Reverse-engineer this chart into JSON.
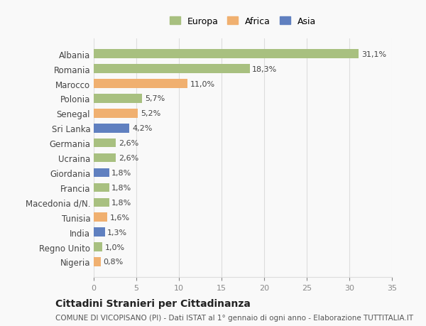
{
  "categories": [
    "Albania",
    "Romania",
    "Marocco",
    "Polonia",
    "Senegal",
    "Sri Lanka",
    "Germania",
    "Ucraina",
    "Giordania",
    "Francia",
    "Macedonia d/N.",
    "Tunisia",
    "India",
    "Regno Unito",
    "Nigeria"
  ],
  "values": [
    31.1,
    18.3,
    11.0,
    5.7,
    5.2,
    4.2,
    2.6,
    2.6,
    1.8,
    1.8,
    1.8,
    1.6,
    1.3,
    1.0,
    0.8
  ],
  "labels": [
    "31,1%",
    "18,3%",
    "11,0%",
    "5,7%",
    "5,2%",
    "4,2%",
    "2,6%",
    "2,6%",
    "1,8%",
    "1,8%",
    "1,8%",
    "1,6%",
    "1,3%",
    "1,0%",
    "0,8%"
  ],
  "continents": [
    "Europa",
    "Europa",
    "Africa",
    "Europa",
    "Africa",
    "Asia",
    "Europa",
    "Europa",
    "Asia",
    "Europa",
    "Europa",
    "Africa",
    "Asia",
    "Europa",
    "Africa"
  ],
  "colors": {
    "Europa": "#a8c080",
    "Africa": "#f0b070",
    "Asia": "#6080c0"
  },
  "title": "Cittadini Stranieri per Cittadinanza",
  "subtitle": "COMUNE DI VICOPISANO (PI) - Dati ISTAT al 1° gennaio di ogni anno - Elaborazione TUTTITALIA.IT",
  "xlim": [
    0,
    35
  ],
  "xticks": [
    0,
    5,
    10,
    15,
    20,
    25,
    30,
    35
  ],
  "background_color": "#f9f9f9",
  "grid_color": "#dddddd",
  "bar_height": 0.6,
  "legend_labels": [
    "Europa",
    "Africa",
    "Asia"
  ]
}
